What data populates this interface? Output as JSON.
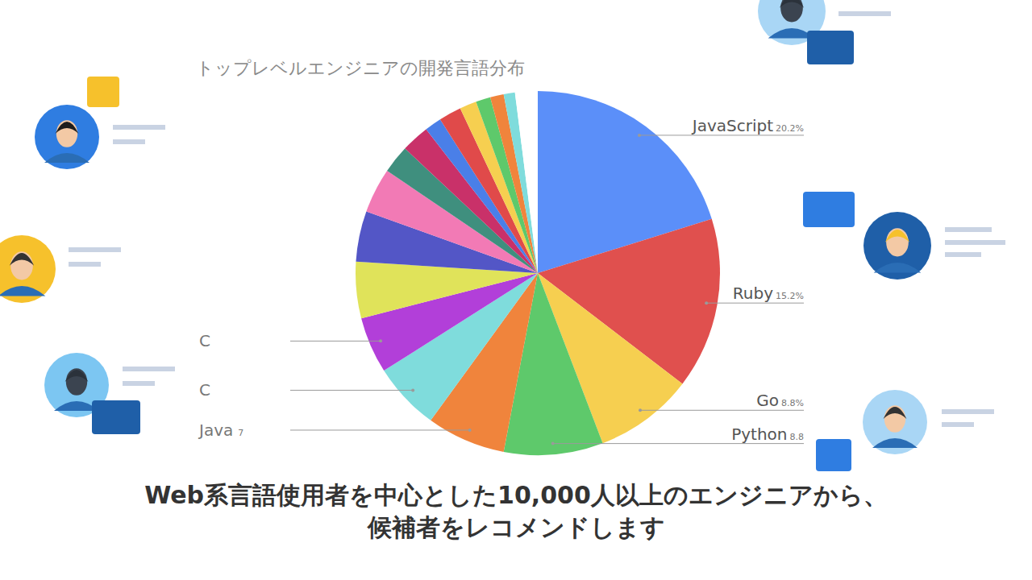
{
  "chart_data": {
    "type": "pie",
    "title": "トップレベルエンジニアの開発言語分布",
    "caption": [
      "Web系言語使用者を中心とした10,000人以上のエンジニアから、",
      "候補者をレコメンドします"
    ],
    "categories": [
      "JavaScript",
      "Ruby",
      "Go",
      "Python",
      "Java",
      "C",
      "C",
      null,
      null,
      null,
      null,
      null,
      null,
      null,
      null,
      null,
      null,
      null,
      null
    ],
    "values": [
      20.2,
      15.2,
      8.8,
      8.8,
      7,
      6,
      5,
      5,
      4.5,
      4,
      2.5,
      2.5,
      1.5,
      2,
      1.5,
      1.3,
      1.2,
      1,
      2
    ],
    "value_labels": [
      "20.2%",
      "15.2%",
      "8.8%",
      "8.8",
      "7",
      null,
      null,
      null,
      null,
      null,
      null,
      null,
      null,
      null,
      null,
      null,
      null,
      null,
      null
    ],
    "colors": [
      "#5b8ff9",
      "#e0504e",
      "#f6cf50",
      "#5ec96b",
      "#f0843c",
      "#7fdcdc",
      "#b23fd9",
      "#e0e35a",
      "#5356c6",
      "#f27ab5",
      "#3f8f7e",
      "#c93169",
      "#4a7fe8",
      "#e04a4a",
      "#f6cf50",
      "#5ec96b",
      "#f0843c",
      "#7fdcdc",
      "#ffffff"
    ],
    "data_labels": true
  }
}
